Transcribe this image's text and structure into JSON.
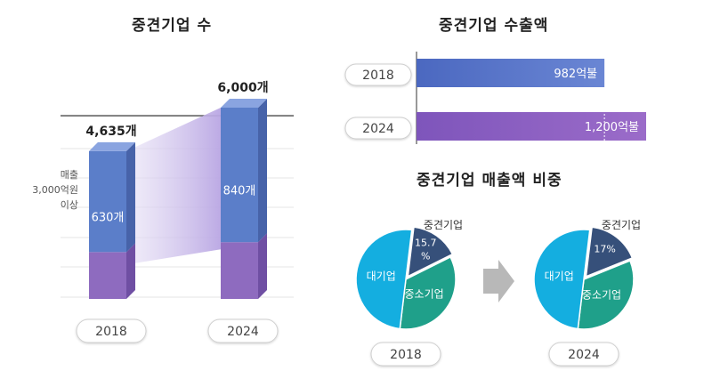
{
  "titles": {
    "count": "중견기업 수",
    "export": "중견기업 수출액",
    "share": "중견기업 매출액 비중"
  },
  "chart_data": [
    {
      "type": "bar",
      "title": "중견기업 수",
      "categories": [
        "2018",
        "2024"
      ],
      "series": [
        {
          "name": "매출 3,000억원 이상",
          "values": [
            630,
            840
          ],
          "labels": [
            "630개",
            "840개"
          ]
        }
      ],
      "totals": [
        4635,
        6000
      ],
      "total_labels": [
        "4,635개",
        "6,000개"
      ],
      "side_label": [
        "매출",
        "3,000억원",
        "이상"
      ],
      "colors": {
        "top": "#5b7ec9",
        "bottom": "#8e6bbf",
        "band": "#d9cdf0"
      }
    },
    {
      "type": "bar",
      "orientation": "horizontal",
      "title": "중견기업 수출액",
      "categories": [
        "2018",
        "2024"
      ],
      "values": [
        982,
        1200
      ],
      "value_labels": [
        "982억불",
        "1,200억불"
      ],
      "colors": [
        "#5b73c8",
        "#8a5ec0"
      ]
    },
    {
      "type": "pie",
      "title": "중견기업 매출액 비중",
      "category": "2018",
      "slices": [
        {
          "label": "중견기업",
          "value": 15.7,
          "value_label": "15.7\n%",
          "color": "#36507a"
        },
        {
          "label": "중소기업",
          "value": 34.3,
          "color": "#1fa08a"
        },
        {
          "label": "대기업",
          "value": 50.0,
          "color": "#14aee0"
        }
      ]
    },
    {
      "type": "pie",
      "title": "중견기업 매출액 비중",
      "category": "2024",
      "slices": [
        {
          "label": "중견기업",
          "value": 17,
          "value_label": "17%",
          "color": "#36507a"
        },
        {
          "label": "중소기업",
          "value": 33,
          "color": "#1fa08a"
        },
        {
          "label": "대기업",
          "value": 50,
          "color": "#14aee0"
        }
      ]
    }
  ]
}
